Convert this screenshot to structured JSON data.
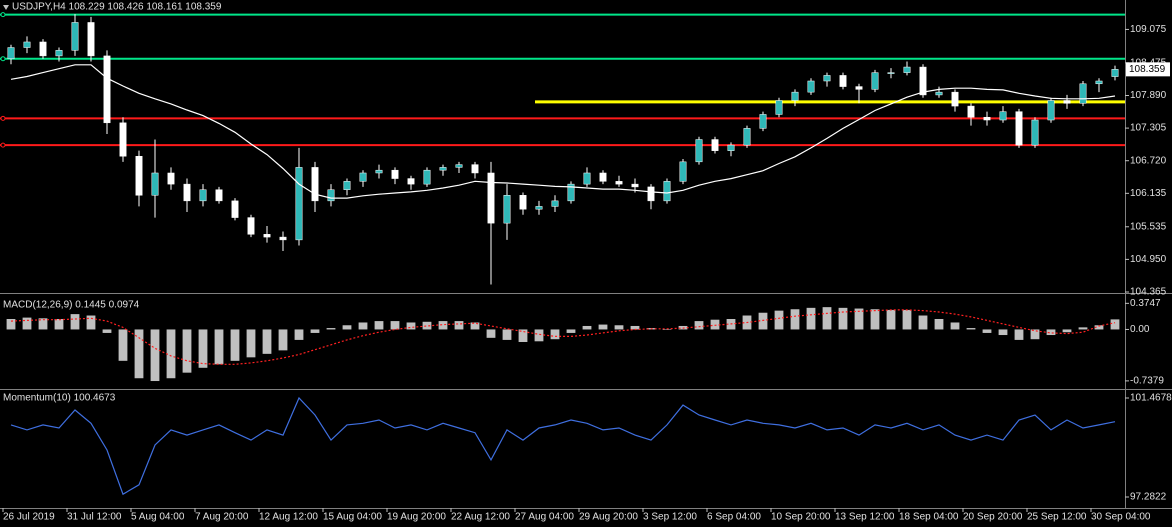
{
  "chart_data": [
    {
      "type": "candlestick",
      "title": "USDJPY,H4 108.229 108.426 108.161 108.359",
      "xlim": [
        0,
        70
      ],
      "ylim": [
        104.365,
        109.567
      ],
      "yticks": [
        109.075,
        108.475,
        {
          "value": 107.89,
          "label": "107.890"
        },
        107.305,
        {
          "value": 106.72,
          "label": "106.720"
        },
        106.135,
        105.535,
        {
          "value": 104.95,
          "label": "104.950"
        },
        104.365
      ],
      "bull_color": "#2fb8b8",
      "bear_color": "#ffffff",
      "wick_color": "#ffffff",
      "candles": [
        [
          108.55,
          108.8,
          108.45,
          108.75
        ],
        [
          108.75,
          108.95,
          108.65,
          108.85
        ],
        [
          108.85,
          108.9,
          108.55,
          108.6
        ],
        [
          108.6,
          108.75,
          108.5,
          108.7
        ],
        [
          108.7,
          109.35,
          108.6,
          109.2
        ],
        [
          109.2,
          109.3,
          108.5,
          108.6
        ],
        [
          108.6,
          108.7,
          107.2,
          107.4
        ],
        [
          107.4,
          107.5,
          106.7,
          106.8
        ],
        [
          106.8,
          106.9,
          105.9,
          106.1
        ],
        [
          106.1,
          107.1,
          105.7,
          106.5
        ],
        [
          106.5,
          106.6,
          106.2,
          106.3
        ],
        [
          106.3,
          106.4,
          105.8,
          106.0
        ],
        [
          106.0,
          106.3,
          105.9,
          106.2
        ],
        [
          106.2,
          106.25,
          105.95,
          106.0
        ],
        [
          106.0,
          106.05,
          105.65,
          105.7
        ],
        [
          105.7,
          105.75,
          105.35,
          105.4
        ],
        [
          105.4,
          105.55,
          105.25,
          105.35
        ],
        [
          105.35,
          105.45,
          105.1,
          105.3
        ],
        [
          105.3,
          106.95,
          105.2,
          106.6
        ],
        [
          106.6,
          106.7,
          105.8,
          106.0
        ],
        [
          106.0,
          106.3,
          105.9,
          106.2
        ],
        [
          106.2,
          106.4,
          106.1,
          106.35
        ],
        [
          106.35,
          106.55,
          106.25,
          106.5
        ],
        [
          106.5,
          106.65,
          106.4,
          106.55
        ],
        [
          106.55,
          106.6,
          106.3,
          106.4
        ],
        [
          106.4,
          106.45,
          106.2,
          106.3
        ],
        [
          106.3,
          106.6,
          106.25,
          106.55
        ],
        [
          106.55,
          106.65,
          106.45,
          106.6
        ],
        [
          106.6,
          106.7,
          106.5,
          106.65
        ],
        [
          106.65,
          106.7,
          106.4,
          106.5
        ],
        [
          106.5,
          106.7,
          104.5,
          105.6
        ],
        [
          105.6,
          106.3,
          105.3,
          106.1
        ],
        [
          106.1,
          106.15,
          105.75,
          105.85
        ],
        [
          105.85,
          106.0,
          105.75,
          105.9
        ],
        [
          105.9,
          106.1,
          105.8,
          106.0
        ],
        [
          106.0,
          106.35,
          105.95,
          106.3
        ],
        [
          106.3,
          106.6,
          106.25,
          106.5
        ],
        [
          106.5,
          106.55,
          106.3,
          106.35
        ],
        [
          106.35,
          106.45,
          106.25,
          106.3
        ],
        [
          106.3,
          106.4,
          106.15,
          106.25
        ],
        [
          106.25,
          106.3,
          105.85,
          106.0
        ],
        [
          106.0,
          106.4,
          105.95,
          106.35
        ],
        [
          106.35,
          106.75,
          106.3,
          106.7
        ],
        [
          106.7,
          107.15,
          106.65,
          107.1
        ],
        [
          107.1,
          107.15,
          106.85,
          106.9
        ],
        [
          106.9,
          107.05,
          106.8,
          107.0
        ],
        [
          107.0,
          107.35,
          106.95,
          107.3
        ],
        [
          107.3,
          107.6,
          107.25,
          107.55
        ],
        [
          107.55,
          107.85,
          107.5,
          107.8
        ],
        [
          107.8,
          108.0,
          107.7,
          107.95
        ],
        [
          107.95,
          108.2,
          107.9,
          108.15
        ],
        [
          108.15,
          108.3,
          108.05,
          108.25
        ],
        [
          108.25,
          108.3,
          108.0,
          108.05
        ],
        [
          108.05,
          108.1,
          107.75,
          108.0
        ],
        [
          108.0,
          108.35,
          107.95,
          108.3
        ],
        [
          108.3,
          108.38,
          108.2,
          108.3
        ],
        [
          108.3,
          108.5,
          108.25,
          108.4
        ],
        [
          108.4,
          108.45,
          107.85,
          107.9
        ],
        [
          107.9,
          108.05,
          107.85,
          107.95
        ],
        [
          107.95,
          108.0,
          107.6,
          107.7
        ],
        [
          107.7,
          107.75,
          107.35,
          107.5
        ],
        [
          107.5,
          107.6,
          107.35,
          107.45
        ],
        [
          107.45,
          107.7,
          107.4,
          107.6
        ],
        [
          107.6,
          107.65,
          106.95,
          107.0
        ],
        [
          107.0,
          107.5,
          106.95,
          107.45
        ],
        [
          107.45,
          107.85,
          107.4,
          107.8
        ],
        [
          107.8,
          107.9,
          107.65,
          107.75
        ],
        [
          107.75,
          108.15,
          107.7,
          108.1
        ],
        [
          108.1,
          108.2,
          107.95,
          108.15
        ],
        [
          108.229,
          108.426,
          108.161,
          108.359
        ]
      ],
      "moving_average": {
        "color": "#ffffff",
        "values": [
          108.18,
          108.23,
          108.3,
          108.37,
          108.44,
          108.44,
          108.2,
          108.06,
          107.93,
          107.83,
          107.74,
          107.63,
          107.53,
          107.39,
          107.23,
          107.02,
          106.83,
          106.58,
          106.3,
          106.12,
          106.05,
          106.05,
          106.09,
          106.12,
          106.14,
          106.16,
          106.19,
          106.23,
          106.28,
          106.35,
          106.33,
          106.32,
          106.3,
          106.28,
          106.26,
          106.25,
          106.23,
          106.21,
          106.21,
          106.19,
          106.16,
          106.14,
          106.19,
          106.28,
          106.35,
          106.4,
          106.47,
          106.54,
          106.67,
          106.79,
          106.95,
          107.12,
          107.3,
          107.46,
          107.62,
          107.74,
          107.86,
          107.95,
          108.0,
          108.02,
          108.02,
          108.0,
          107.99,
          107.93,
          107.88,
          107.84,
          107.83,
          107.83,
          107.84,
          107.88
        ]
      },
      "levels": [
        {
          "value": 109.34,
          "color": "#00e68a"
        },
        {
          "value": 108.55,
          "color": "#00e68a"
        },
        {
          "value": 107.775,
          "color": "#ffff00",
          "x_start": 33.25
        },
        {
          "value": 107.48,
          "color": "#ff1a1a"
        },
        {
          "value": 107.0,
          "color": "#ff1a1a"
        }
      ],
      "last_price": 108.359
    },
    {
      "type": "bar",
      "title": "MACD(12,26,9) 0.1445 0.0974",
      "xlim": [
        0,
        70
      ],
      "ylim": [
        -0.84,
        0.48
      ],
      "yticks": [
        0.3747,
        {
          "value": 0,
          "label": "0.00"
        },
        -0.7379
      ],
      "series": [
        {
          "kind": "bar",
          "color": "#c0c0c0",
          "values": [
            0.15,
            0.17,
            0.16,
            0.15,
            0.22,
            0.2,
            -0.05,
            -0.45,
            -0.7,
            -0.74,
            -0.7,
            -0.62,
            -0.55,
            -0.5,
            -0.45,
            -0.4,
            -0.35,
            -0.3,
            -0.15,
            -0.05,
            0.02,
            0.06,
            0.1,
            0.12,
            0.12,
            0.1,
            0.11,
            0.12,
            0.12,
            0.1,
            -0.12,
            -0.15,
            -0.18,
            -0.17,
            -0.14,
            -0.05,
            0.05,
            0.07,
            0.06,
            0.05,
            0.02,
            0.0,
            0.05,
            0.12,
            0.14,
            0.15,
            0.2,
            0.24,
            0.27,
            0.29,
            0.31,
            0.32,
            0.31,
            0.3,
            0.29,
            0.28,
            0.28,
            0.2,
            0.15,
            0.1,
            0.02,
            -0.05,
            -0.08,
            -0.15,
            -0.14,
            -0.08,
            -0.04,
            0.03,
            0.06,
            0.1445
          ]
        },
        {
          "kind": "line",
          "color": "#ff2020",
          "values": [
            0.12,
            0.13,
            0.14,
            0.14,
            0.15,
            0.16,
            0.12,
            0.03,
            -0.12,
            -0.27,
            -0.38,
            -0.45,
            -0.49,
            -0.5,
            -0.5,
            -0.48,
            -0.45,
            -0.41,
            -0.36,
            -0.29,
            -0.22,
            -0.15,
            -0.09,
            -0.04,
            0.0,
            0.03,
            0.05,
            0.07,
            0.08,
            0.09,
            0.05,
            0.01,
            -0.03,
            -0.07,
            -0.1,
            -0.1,
            -0.08,
            -0.05,
            -0.02,
            0.0,
            0.01,
            0.01,
            0.02,
            0.04,
            0.06,
            0.08,
            0.1,
            0.13,
            0.16,
            0.19,
            0.21,
            0.23,
            0.25,
            0.26,
            0.27,
            0.28,
            0.28,
            0.27,
            0.25,
            0.22,
            0.18,
            0.13,
            0.08,
            0.03,
            -0.02,
            -0.05,
            -0.06,
            -0.04,
            0.05,
            0.0974
          ]
        }
      ]
    },
    {
      "type": "line",
      "title": "Momentum(10) 100.4673",
      "xlim": [
        0,
        70
      ],
      "ylim": [
        96.86,
        101.764
      ],
      "yticks": [
        101.4678,
        97.2822
      ],
      "color": "#3f6fe0",
      "values": [
        100.33,
        100.12,
        100.33,
        100.2,
        100.96,
        100.4,
        99.27,
        97.4,
        97.8,
        99.48,
        100.12,
        99.9,
        100.12,
        100.33,
        100.0,
        99.69,
        100.12,
        99.9,
        101.47,
        100.75,
        99.69,
        100.33,
        100.4,
        100.54,
        100.2,
        100.33,
        100.12,
        100.4,
        100.2,
        100.0,
        98.85,
        100.12,
        99.69,
        100.2,
        100.33,
        100.54,
        100.4,
        100.12,
        100.2,
        99.9,
        99.69,
        100.33,
        101.17,
        100.75,
        100.54,
        100.33,
        100.54,
        100.4,
        100.33,
        100.2,
        100.4,
        100.12,
        100.2,
        99.9,
        100.33,
        100.2,
        100.4,
        100.12,
        100.33,
        99.9,
        99.69,
        99.9,
        99.69,
        100.54,
        100.75,
        100.12,
        100.54,
        100.2,
        100.33,
        100.4673
      ],
      "xticks": [
        {
          "value": 0,
          "label": "26 Jul 2019"
        },
        {
          "value": 4,
          "label": "31 Jul 12:00"
        },
        {
          "value": 8,
          "label": "5 Aug 04:00"
        },
        {
          "value": 12,
          "label": "7 Aug 20:00"
        },
        {
          "value": 16,
          "label": "12 Aug 12:00"
        },
        {
          "value": 20,
          "label": "15 Aug 04:00"
        },
        {
          "value": 24,
          "label": "19 Aug 20:00"
        },
        {
          "value": 28,
          "label": "22 Aug 12:00"
        },
        {
          "value": 32,
          "label": "27 Aug 04:00"
        },
        {
          "value": 36,
          "label": "29 Aug 20:00"
        },
        {
          "value": 40,
          "label": "3 Sep 12:00"
        },
        {
          "value": 44,
          "label": "6 Sep 04:00"
        },
        {
          "value": 48,
          "label": "10 Sep 20:00"
        },
        {
          "value": 52,
          "label": "13 Sep 12:00"
        },
        {
          "value": 56,
          "label": "18 Sep 04:00"
        },
        {
          "value": 60,
          "label": "20 Sep 20:00"
        },
        {
          "value": 64,
          "label": "25 Sep 12:00"
        },
        {
          "value": 68,
          "label": "30 Sep 04:00"
        }
      ]
    }
  ]
}
